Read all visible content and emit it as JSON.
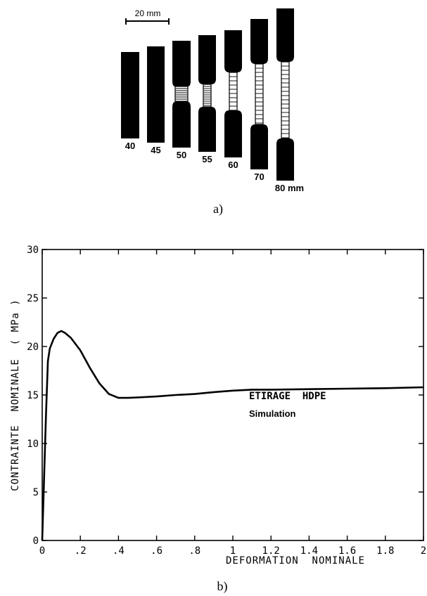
{
  "panel_a": {
    "scale_bar_label": "20 mm",
    "caption": "a)",
    "specimens": [
      {
        "label": "40",
        "neck": "none"
      },
      {
        "label": "45",
        "neck": "none"
      },
      {
        "label": "50",
        "neck": "shallow"
      },
      {
        "label": "55",
        "neck": "deep"
      },
      {
        "label": "60",
        "neck": "drawn"
      },
      {
        "label": "70",
        "neck": "drawn"
      },
      {
        "label": "80 mm",
        "neck": "drawn"
      }
    ]
  },
  "panel_b": {
    "caption": "b)",
    "annotation_title": "ETIRAGE  HDPE",
    "annotation_subtitle": "Simulation"
  },
  "chart_data": {
    "type": "line",
    "xlabel": "DEFORMATION  NOMINALE",
    "ylabel": "CONTRAINTE  NOMINALE  ( MPa )",
    "xlim": [
      0,
      2
    ],
    "ylim": [
      0,
      30
    ],
    "grid": false,
    "x_ticks": [
      0,
      0.2,
      0.4,
      0.6,
      0.8,
      1,
      1.2,
      1.4,
      1.6,
      1.8,
      2
    ],
    "x_tick_labels": [
      "0",
      ".2",
      ".4",
      ".6",
      ".8",
      "1",
      "1.2",
      "1.4",
      "1.6",
      "1.8",
      "2"
    ],
    "y_ticks": [
      0,
      5,
      10,
      15,
      20,
      25,
      30
    ],
    "y_tick_labels": [
      "0",
      "5",
      "10",
      "15",
      "20",
      "25",
      "30"
    ],
    "series": [
      {
        "x": [
          0,
          0.01,
          0.02,
          0.03,
          0.04,
          0.06,
          0.08,
          0.1,
          0.12,
          0.15,
          0.2,
          0.25,
          0.3,
          0.35,
          0.4,
          0.45,
          0.5,
          0.6,
          0.7,
          0.8,
          0.9,
          1.0,
          1.1,
          1.2,
          1.4,
          1.6,
          1.8,
          2.0
        ],
        "y": [
          0,
          6.5,
          13,
          18.5,
          19.8,
          20.8,
          21.4,
          21.6,
          21.4,
          20.9,
          19.6,
          17.8,
          16.2,
          15.1,
          14.7,
          14.7,
          14.75,
          14.85,
          15.0,
          15.1,
          15.3,
          15.45,
          15.55,
          15.55,
          15.6,
          15.65,
          15.7,
          15.8
        ]
      }
    ]
  }
}
